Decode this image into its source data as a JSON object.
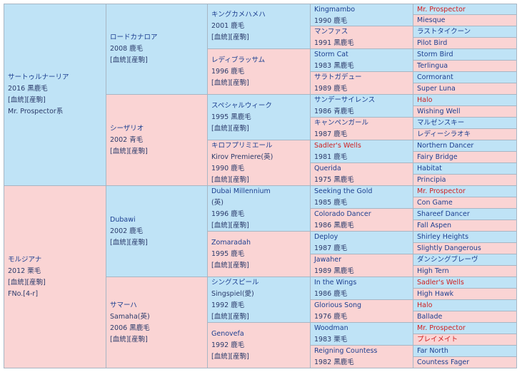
{
  "g1": [
    {
      "name": "サートゥルナーリア",
      "lines": [
        "2016 黒鹿毛",
        "[血統][産駒]",
        "Mr. Prospector系"
      ]
    },
    {
      "name": "モルジアナ",
      "lines": [
        "2012 栗毛",
        "[血統][産駒]",
        "FNo.[4-r]"
      ]
    }
  ],
  "g2": [
    {
      "name": "ロードカナロア",
      "lines": [
        "2008 鹿毛",
        "[血統][産駒]"
      ]
    },
    {
      "name": "シーザリオ",
      "lines": [
        "2002 青毛",
        "[血統][産駒]"
      ]
    },
    {
      "name": "Dubawi",
      "lines": [
        "2002 鹿毛",
        "[血統][産駒]"
      ]
    },
    {
      "name": "サマーハ",
      "lines": [
        "Samaha(英)",
        "2006 黒鹿毛",
        "[血統][産駒]"
      ]
    }
  ],
  "g3": [
    {
      "name": "キングカメハメハ",
      "lines": [
        "2001 鹿毛",
        "[血統][産駒]"
      ]
    },
    {
      "name": "レディブラッサム",
      "lines": [
        "1996 鹿毛",
        "[血統][産駒]"
      ]
    },
    {
      "name": "スペシャルウィーク",
      "lines": [
        "1995 黒鹿毛",
        "[血統][産駒]"
      ]
    },
    {
      "name": "キロフプリミエール",
      "lines": [
        "Kirov Premiere(英)",
        "1990 鹿毛",
        "[血統][産駒]"
      ]
    },
    {
      "name": "Dubai Millennium",
      "lines": [
        "(英)",
        "1996 鹿毛",
        "[血統][産駒]"
      ]
    },
    {
      "name": "Zomaradah",
      "lines": [
        "1995 鹿毛",
        "[血統][産駒]"
      ]
    },
    {
      "name": "シングスピール",
      "lines": [
        "Singspiel(愛)",
        "1992 鹿毛",
        "[血統][産駒]"
      ]
    },
    {
      "name": "Genovefa",
      "lines": [
        "1992 鹿毛",
        "[血統][産駒]"
      ]
    }
  ],
  "g4": [
    {
      "name": "Kingmambo",
      "year": "1990 鹿毛"
    },
    {
      "name": "マンファス",
      "year": "1991 黒鹿毛"
    },
    {
      "name": "Storm Cat",
      "year": "1983 黒鹿毛"
    },
    {
      "name": "サラトガデュー",
      "year": "1989 鹿毛"
    },
    {
      "name": "サンデーサイレンス",
      "year": "1986 青鹿毛"
    },
    {
      "name": "キャンペンガール",
      "year": "1987 鹿毛"
    },
    {
      "name": "Sadler's Wells",
      "year": "1981 鹿毛",
      "red": true
    },
    {
      "name": "Querida",
      "year": "1975 黒鹿毛"
    },
    {
      "name": "Seeking the Gold",
      "year": "1985 鹿毛"
    },
    {
      "name": "Colorado Dancer",
      "year": "1986 黒鹿毛"
    },
    {
      "name": "Deploy",
      "year": "1987 鹿毛"
    },
    {
      "name": "Jawaher",
      "year": "1989 黒鹿毛"
    },
    {
      "name": "In the Wings",
      "year": "1986 鹿毛"
    },
    {
      "name": "Glorious Song",
      "year": "1976 鹿毛"
    },
    {
      "name": "Woodman",
      "year": "1983 栗毛"
    },
    {
      "name": "Reigning Countess",
      "year": "1982 黒鹿毛"
    }
  ],
  "g5": [
    {
      "name": "Mr. Prospector",
      "red": true
    },
    {
      "name": "Miesque"
    },
    {
      "name": "ラストタイクーン"
    },
    {
      "name": "Pilot Bird"
    },
    {
      "name": "Storm Bird"
    },
    {
      "name": "Terlingua"
    },
    {
      "name": "Cormorant"
    },
    {
      "name": "Super Luna"
    },
    {
      "name": "Halo",
      "red": true
    },
    {
      "name": "Wishing Well"
    },
    {
      "name": "マルゼンスキー"
    },
    {
      "name": "レディーシラオキ"
    },
    {
      "name": "Northern Dancer"
    },
    {
      "name": "Fairy Bridge"
    },
    {
      "name": "Habitat"
    },
    {
      "name": "Principia"
    },
    {
      "name": "Mr. Prospector",
      "red": true
    },
    {
      "name": "Con Game"
    },
    {
      "name": "Shareef Dancer"
    },
    {
      "name": "Fall Aspen"
    },
    {
      "name": "Shirley Heights"
    },
    {
      "name": "Slightly Dangerous"
    },
    {
      "name": "ダンシングブレーヴ"
    },
    {
      "name": "High Tern"
    },
    {
      "name": "Sadler's Wells",
      "red": true
    },
    {
      "name": "High Hawk"
    },
    {
      "name": "Halo",
      "red": true
    },
    {
      "name": "Ballade"
    },
    {
      "name": "Mr. Prospector",
      "red": true
    },
    {
      "name": "プレイメイト",
      "red": true
    },
    {
      "name": "Far North"
    },
    {
      "name": "Countess Fager"
    }
  ]
}
